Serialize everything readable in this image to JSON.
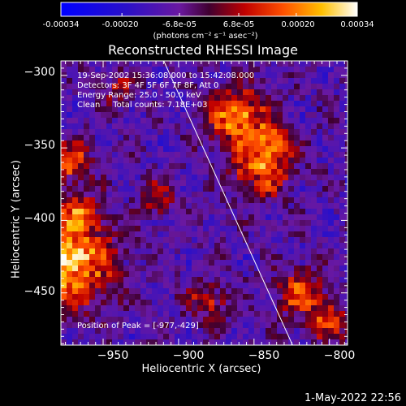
{
  "colorbar": {
    "ticks": [
      "-0.00034",
      "-0.00020",
      "-6.8e-05",
      "6.8e-05",
      "0.00020",
      "0.00034"
    ],
    "tick_values": [
      -0.00034,
      -0.0002,
      -6.8e-05,
      6.8e-05,
      0.0002,
      0.00034
    ],
    "range": [
      -0.00034,
      0.00034
    ],
    "unit": "(photons cm⁻² s⁻¹ asec⁻²)"
  },
  "title": "Reconstructed RHESSI Image",
  "info": {
    "time": "19-Sep-2002 15:36:08.000 to 15:42:08.000",
    "detectors": "Detectors: 3F 4F 5F 6F 7F 8F, Att 0",
    "energy": "Energy Range: 25.0 - 50.0 keV",
    "clean": "Clean     Total counts: 7.18E+03"
  },
  "peak_text": "Position of Peak = [-977,-429]",
  "footer_date": "1-May-2022 22:56",
  "chart_data": {
    "type": "heatmap",
    "title": "Reconstructed RHESSI Image",
    "xlabel": "Heliocentric X (arcsec)",
    "ylabel": "Heliocentric Y (arcsec)",
    "xlim": [
      -978,
      -788
    ],
    "ylim": [
      -486,
      -290
    ],
    "xticks": [
      -950,
      -900,
      -850,
      -800
    ],
    "yticks": [
      -300,
      -350,
      -400,
      -450
    ],
    "xtick_labels": [
      "−950",
      "−900",
      "−850",
      "−800"
    ],
    "ytick_labels": [
      "−300",
      "−350",
      "−400",
      "−450"
    ],
    "colormap": "blue-purple-red-yellow-white",
    "peak": [
      -977,
      -429
    ],
    "limb_line": [
      [
        -912,
        -285
      ],
      [
        -824,
        -487
      ]
    ]
  }
}
